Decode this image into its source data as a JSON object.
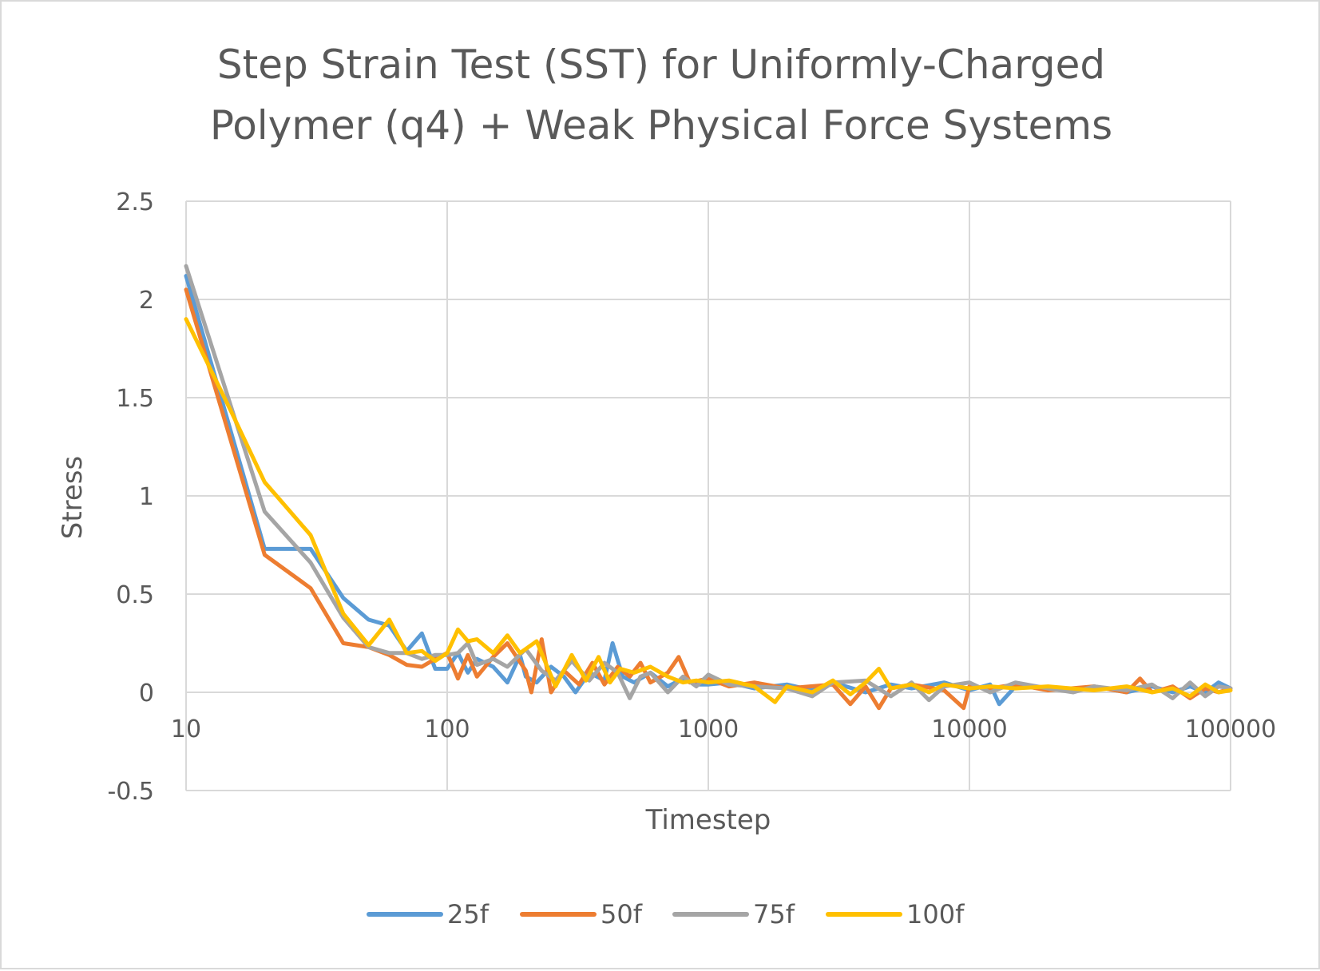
{
  "chart_data": {
    "type": "line",
    "title_lines": [
      "Step Strain Test (SST) for Uniformly-Charged",
      "Polymer (q4) + Weak Physical Force Systems"
    ],
    "xlabel": "Timestep",
    "ylabel": "Stress",
    "x_scale": "log",
    "xlim": [
      10,
      100000
    ],
    "ylim": [
      -0.5,
      2.5
    ],
    "x_ticks": [
      10,
      100,
      1000,
      10000,
      100000
    ],
    "x_tick_labels": [
      "10",
      "100",
      "1000",
      "10000",
      "100000"
    ],
    "y_ticks": [
      -0.5,
      0,
      0.5,
      1,
      1.5,
      2,
      2.5
    ],
    "y_tick_labels": [
      "-0.5",
      "0",
      "0.5",
      "1",
      "1.5",
      "2",
      "2.5"
    ],
    "grid": true,
    "legend_position": "bottom",
    "series": [
      {
        "name": "25f",
        "color": "#5b9bd5",
        "points": [
          [
            10,
            2.12
          ],
          [
            20,
            0.73
          ],
          [
            30,
            0.73
          ],
          [
            40,
            0.48
          ],
          [
            50,
            0.37
          ],
          [
            60,
            0.34
          ],
          [
            70,
            0.21
          ],
          [
            80,
            0.3
          ],
          [
            90,
            0.12
          ],
          [
            100,
            0.12
          ],
          [
            110,
            0.2
          ],
          [
            120,
            0.1
          ],
          [
            130,
            0.17
          ],
          [
            150,
            0.13
          ],
          [
            170,
            0.05
          ],
          [
            190,
            0.19
          ],
          [
            200,
            0.08
          ],
          [
            220,
            0.05
          ],
          [
            250,
            0.13
          ],
          [
            280,
            0.08
          ],
          [
            310,
            0.0
          ],
          [
            350,
            0.1
          ],
          [
            400,
            0.06
          ],
          [
            430,
            0.25
          ],
          [
            470,
            0.08
          ],
          [
            520,
            0.05
          ],
          [
            600,
            0.1
          ],
          [
            700,
            0.03
          ],
          [
            800,
            0.07
          ],
          [
            900,
            0.04
          ],
          [
            1000,
            0.04
          ],
          [
            1200,
            0.05
          ],
          [
            1500,
            0.02
          ],
          [
            2000,
            0.04
          ],
          [
            2500,
            0.01
          ],
          [
            3000,
            0.05
          ],
          [
            4000,
            0.0
          ],
          [
            5000,
            0.04
          ],
          [
            6000,
            0.02
          ],
          [
            8000,
            0.05
          ],
          [
            10000,
            0.01
          ],
          [
            12000,
            0.04
          ],
          [
            13000,
            -0.06
          ],
          [
            15000,
            0.03
          ],
          [
            20000,
            0.02
          ],
          [
            25000,
            0.01
          ],
          [
            30000,
            0.03
          ],
          [
            40000,
            0.0
          ],
          [
            50000,
            0.03
          ],
          [
            60000,
            0.0
          ],
          [
            70000,
            0.03
          ],
          [
            80000,
            0.0
          ],
          [
            90000,
            0.05
          ],
          [
            100000,
            0.02
          ]
        ]
      },
      {
        "name": "50f",
        "color": "#ed7d31",
        "points": [
          [
            10,
            2.05
          ],
          [
            20,
            0.7
          ],
          [
            30,
            0.53
          ],
          [
            40,
            0.25
          ],
          [
            50,
            0.23
          ],
          [
            60,
            0.19
          ],
          [
            70,
            0.14
          ],
          [
            80,
            0.13
          ],
          [
            90,
            0.17
          ],
          [
            100,
            0.2
          ],
          [
            110,
            0.07
          ],
          [
            120,
            0.19
          ],
          [
            130,
            0.08
          ],
          [
            150,
            0.18
          ],
          [
            170,
            0.25
          ],
          [
            200,
            0.11
          ],
          [
            210,
            0.0
          ],
          [
            230,
            0.27
          ],
          [
            250,
            0.0
          ],
          [
            280,
            0.11
          ],
          [
            320,
            0.04
          ],
          [
            360,
            0.15
          ],
          [
            400,
            0.04
          ],
          [
            450,
            0.13
          ],
          [
            500,
            0.08
          ],
          [
            550,
            0.15
          ],
          [
            600,
            0.05
          ],
          [
            700,
            0.1
          ],
          [
            770,
            0.18
          ],
          [
            850,
            0.05
          ],
          [
            1000,
            0.07
          ],
          [
            1200,
            0.03
          ],
          [
            1500,
            0.05
          ],
          [
            2000,
            0.02
          ],
          [
            3000,
            0.04
          ],
          [
            3500,
            -0.06
          ],
          [
            4000,
            0.03
          ],
          [
            4500,
            -0.08
          ],
          [
            5000,
            0.02
          ],
          [
            6000,
            0.04
          ],
          [
            8000,
            0.01
          ],
          [
            9500,
            -0.08
          ],
          [
            10000,
            0.03
          ],
          [
            12000,
            0.02
          ],
          [
            15000,
            0.04
          ],
          [
            20000,
            0.01
          ],
          [
            30000,
            0.03
          ],
          [
            40000,
            0.0
          ],
          [
            45000,
            0.07
          ],
          [
            50000,
            0.0
          ],
          [
            60000,
            0.03
          ],
          [
            70000,
            -0.03
          ],
          [
            80000,
            0.02
          ],
          [
            90000,
            0.0
          ],
          [
            100000,
            0.02
          ]
        ]
      },
      {
        "name": "75f",
        "color": "#a5a5a5",
        "points": [
          [
            10,
            2.17
          ],
          [
            20,
            0.92
          ],
          [
            30,
            0.66
          ],
          [
            40,
            0.38
          ],
          [
            50,
            0.23
          ],
          [
            60,
            0.2
          ],
          [
            70,
            0.2
          ],
          [
            80,
            0.17
          ],
          [
            90,
            0.19
          ],
          [
            100,
            0.19
          ],
          [
            110,
            0.2
          ],
          [
            120,
            0.25
          ],
          [
            130,
            0.14
          ],
          [
            150,
            0.17
          ],
          [
            170,
            0.13
          ],
          [
            200,
            0.22
          ],
          [
            230,
            0.11
          ],
          [
            260,
            0.06
          ],
          [
            300,
            0.16
          ],
          [
            350,
            0.06
          ],
          [
            400,
            0.15
          ],
          [
            450,
            0.1
          ],
          [
            500,
            -0.03
          ],
          [
            550,
            0.08
          ],
          [
            600,
            0.1
          ],
          [
            700,
            0.0
          ],
          [
            800,
            0.08
          ],
          [
            900,
            0.03
          ],
          [
            1000,
            0.09
          ],
          [
            1200,
            0.04
          ],
          [
            1500,
            0.03
          ],
          [
            2000,
            0.02
          ],
          [
            2500,
            -0.02
          ],
          [
            3000,
            0.05
          ],
          [
            4000,
            0.06
          ],
          [
            5000,
            -0.02
          ],
          [
            6000,
            0.05
          ],
          [
            7000,
            -0.04
          ],
          [
            8000,
            0.03
          ],
          [
            10000,
            0.05
          ],
          [
            12000,
            0.0
          ],
          [
            15000,
            0.05
          ],
          [
            20000,
            0.02
          ],
          [
            25000,
            0.0
          ],
          [
            30000,
            0.03
          ],
          [
            40000,
            0.01
          ],
          [
            50000,
            0.04
          ],
          [
            60000,
            -0.03
          ],
          [
            70000,
            0.05
          ],
          [
            80000,
            -0.02
          ],
          [
            90000,
            0.03
          ],
          [
            100000,
            0.02
          ]
        ]
      },
      {
        "name": "100f",
        "color": "#ffc000",
        "points": [
          [
            10,
            1.9
          ],
          [
            15,
            1.42
          ],
          [
            20,
            1.07
          ],
          [
            30,
            0.8
          ],
          [
            40,
            0.4
          ],
          [
            50,
            0.24
          ],
          [
            60,
            0.37
          ],
          [
            70,
            0.2
          ],
          [
            80,
            0.21
          ],
          [
            90,
            0.16
          ],
          [
            100,
            0.2
          ],
          [
            110,
            0.32
          ],
          [
            120,
            0.26
          ],
          [
            130,
            0.27
          ],
          [
            150,
            0.2
          ],
          [
            170,
            0.29
          ],
          [
            190,
            0.2
          ],
          [
            220,
            0.26
          ],
          [
            240,
            0.14
          ],
          [
            260,
            0.03
          ],
          [
            300,
            0.19
          ],
          [
            340,
            0.06
          ],
          [
            380,
            0.18
          ],
          [
            420,
            0.05
          ],
          [
            460,
            0.12
          ],
          [
            520,
            0.1
          ],
          [
            600,
            0.13
          ],
          [
            700,
            0.08
          ],
          [
            800,
            0.05
          ],
          [
            900,
            0.06
          ],
          [
            1000,
            0.05
          ],
          [
            1200,
            0.06
          ],
          [
            1500,
            0.03
          ],
          [
            1800,
            -0.05
          ],
          [
            2000,
            0.03
          ],
          [
            2500,
            0.0
          ],
          [
            3000,
            0.06
          ],
          [
            3500,
            -0.01
          ],
          [
            4000,
            0.05
          ],
          [
            4500,
            0.12
          ],
          [
            5000,
            0.02
          ],
          [
            6000,
            0.04
          ],
          [
            7000,
            0.0
          ],
          [
            8000,
            0.04
          ],
          [
            10000,
            0.02
          ],
          [
            12000,
            0.03
          ],
          [
            15000,
            0.02
          ],
          [
            20000,
            0.03
          ],
          [
            30000,
            0.01
          ],
          [
            40000,
            0.03
          ],
          [
            50000,
            0.0
          ],
          [
            60000,
            0.02
          ],
          [
            70000,
            -0.02
          ],
          [
            80000,
            0.04
          ],
          [
            90000,
            0.0
          ],
          [
            100000,
            0.01
          ]
        ]
      }
    ]
  }
}
